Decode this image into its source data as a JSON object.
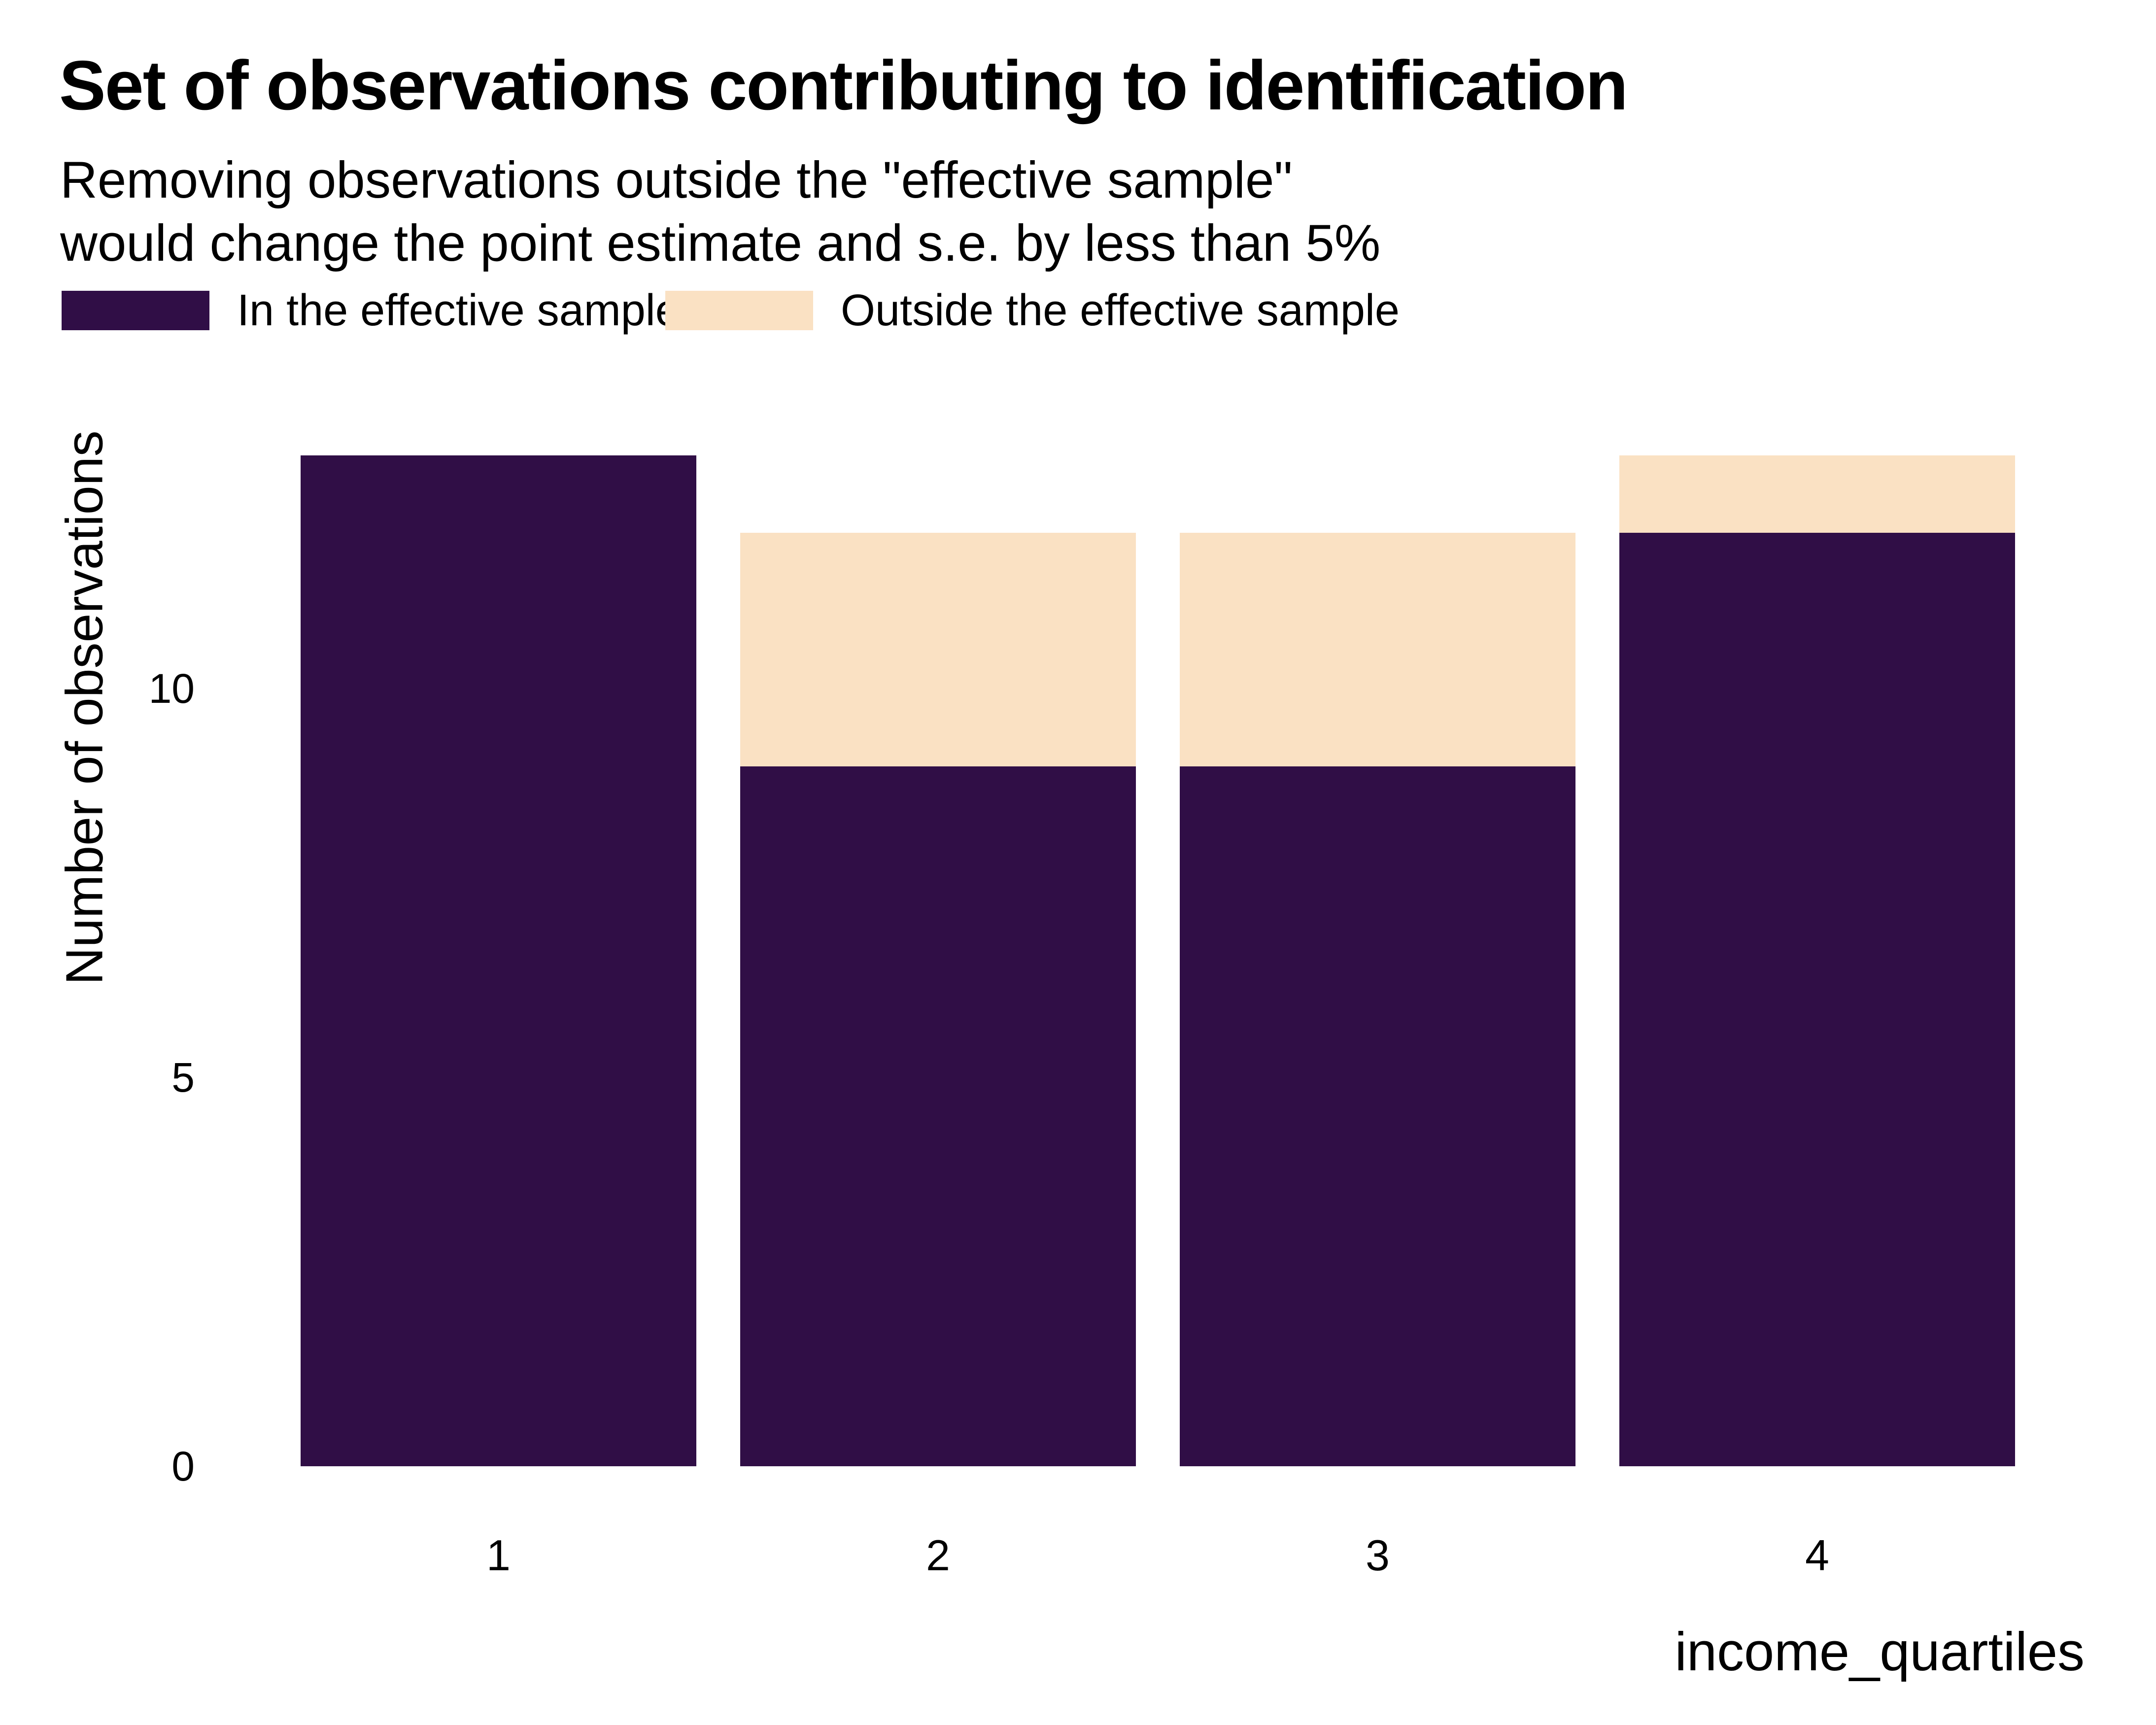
{
  "chart_data": {
    "type": "bar",
    "stacked": true,
    "title": "Set of observations contributing to identification",
    "subtitle_lines": [
      "Removing observations outside the \"effective sample\"",
      "would change the point estimate and s.e. by less than 5%"
    ],
    "xlabel": "income_quartiles",
    "ylabel": "Number of observations",
    "categories": [
      "1",
      "2",
      "3",
      "4"
    ],
    "series": [
      {
        "name": "In the effective sample",
        "color": "#300E46",
        "values": [
          13,
          9,
          9,
          12
        ]
      },
      {
        "name": "Outside the effective sample",
        "color": "#FAE1C3",
        "values": [
          0,
          3,
          3,
          1
        ]
      }
    ],
    "totals": [
      13,
      12,
      12,
      13
    ],
    "yticks": [
      0,
      5,
      10
    ],
    "ylim": [
      0,
      13.65
    ],
    "grid": false,
    "axis_lines": false,
    "tick_marks": false,
    "legend_position": "top-left",
    "background": "#FFFFFF",
    "text_color": "#000000"
  }
}
